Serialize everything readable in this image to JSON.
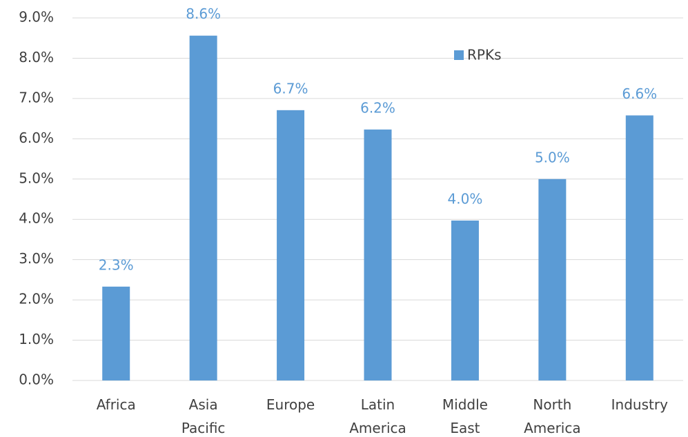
{
  "chart_data": {
    "type": "bar",
    "categories": [
      "Africa",
      "Asia Pacific",
      "Europe",
      "Latin America",
      "Middle East",
      "North America",
      "Industry"
    ],
    "series": [
      {
        "name": "RPKs",
        "color": "#5b9bd5",
        "values": [
          2.33,
          8.56,
          6.71,
          6.23,
          3.97,
          5.0,
          6.58
        ],
        "value_labels": [
          "2.3%",
          "8.6%",
          "6.7%",
          "6.2%",
          "4.0%",
          "5.0%",
          "6.6%"
        ]
      }
    ],
    "ylim": [
      0,
      9
    ],
    "yticks": [
      {
        "value": 0,
        "label": "0.0%"
      },
      {
        "value": 1,
        "label": "1.0%"
      },
      {
        "value": 2,
        "label": "2.0%"
      },
      {
        "value": 3,
        "label": "3.0%"
      },
      {
        "value": 4,
        "label": "4.0%"
      },
      {
        "value": 5,
        "label": "5.0%"
      },
      {
        "value": 6,
        "label": "6.0%"
      },
      {
        "value": 7,
        "label": "7.0%"
      },
      {
        "value": 8,
        "label": "8.0%"
      },
      {
        "value": 9,
        "label": "9.0%"
      }
    ],
    "grid": true
  }
}
